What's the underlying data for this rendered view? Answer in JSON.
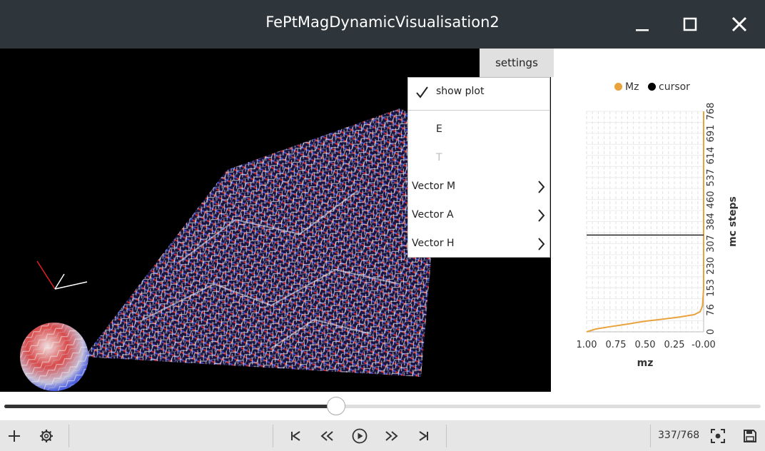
{
  "window": {
    "title": "FePtMagDynamicVisualisation2"
  },
  "settings": {
    "button_label": "settings",
    "menu": {
      "show_plot": {
        "label": "show plot",
        "checked": true
      },
      "items": [
        {
          "label": "E",
          "enabled": true,
          "submenu": false
        },
        {
          "label": "T",
          "enabled": false,
          "submenu": false
        },
        {
          "label": "Vector M",
          "enabled": true,
          "submenu": true
        },
        {
          "label": "Vector A",
          "enabled": true,
          "submenu": true
        },
        {
          "label": "Vector H",
          "enabled": true,
          "submenu": true
        }
      ]
    }
  },
  "chart_data": {
    "type": "line",
    "orientation": "horizontal-x-reversed",
    "xlabel": "mz",
    "ylabel": "mc steps",
    "xlim": [
      1.0,
      0.0
    ],
    "ylim": [
      0,
      768
    ],
    "xticks": [
      "1.00",
      "0.75",
      "0.50",
      "0.25",
      "-0.00"
    ],
    "yticks": [
      "0",
      "76",
      "153",
      "230",
      "307",
      "384",
      "460",
      "537",
      "614",
      "691",
      "768"
    ],
    "grid": true,
    "legend_position": "top",
    "series": [
      {
        "name": "Mz",
        "color": "#e8a33c",
        "points": [
          [
            1.0,
            0
          ],
          [
            0.92,
            10
          ],
          [
            0.8,
            18
          ],
          [
            0.65,
            27
          ],
          [
            0.5,
            37
          ],
          [
            0.35,
            44
          ],
          [
            0.2,
            52
          ],
          [
            0.08,
            60
          ],
          [
            0.03,
            70
          ],
          [
            0.01,
            90
          ],
          [
            0.0,
            150
          ],
          [
            0.0,
            300
          ],
          [
            0.0,
            500
          ],
          [
            0.0,
            768
          ]
        ]
      },
      {
        "name": "cursor",
        "color": "#000000",
        "y": 337
      }
    ]
  },
  "slider": {
    "value": 337,
    "max": 768
  },
  "toolbar": {
    "counter": "337/768"
  },
  "icons": {
    "minimize": "minimize-icon",
    "maximize": "maximize-icon",
    "close": "close-icon",
    "add": "plus-icon",
    "settings": "gear-icon",
    "first": "skip-back-icon",
    "rewind": "rewind-icon",
    "play": "play-icon",
    "forward": "fast-forward-icon",
    "last": "skip-forward-icon",
    "focus": "focus-icon",
    "save": "save-icon"
  }
}
